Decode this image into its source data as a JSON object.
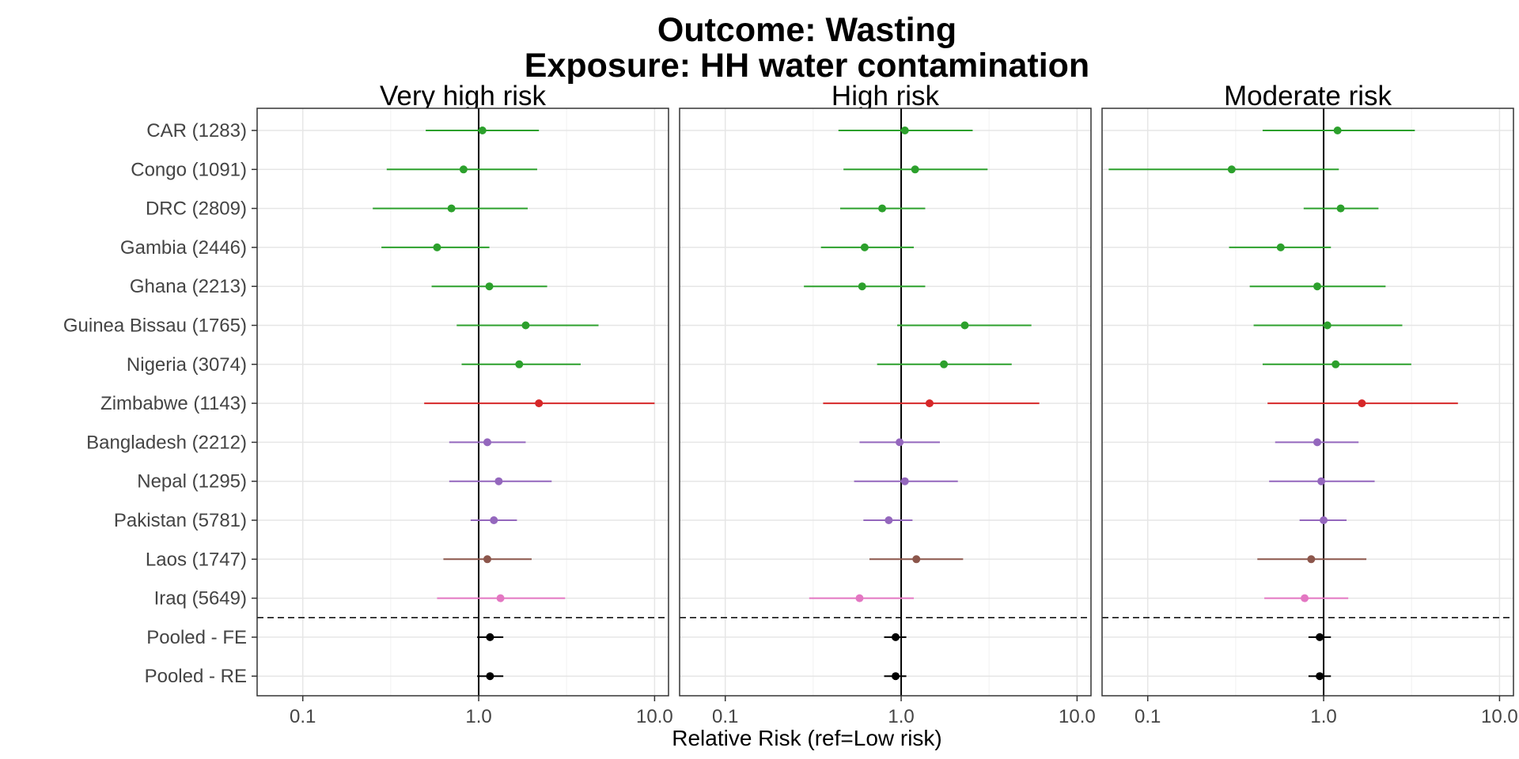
{
  "chart_data": {
    "type": "scatter",
    "title_lines": [
      "Outcome: Wasting",
      "Exposure: HH water contamination"
    ],
    "xlabel": "Relative Risk (ref=Low risk)",
    "ylabel": "",
    "x_scale": "log",
    "xlim": [
      0.055,
      12
    ],
    "x_ticks": [
      0.1,
      1.0,
      10.0
    ],
    "x_tick_labels": [
      "0.1",
      "1.0",
      "10.0"
    ],
    "reference_line_x": 1.0,
    "grid": true,
    "facets": [
      "Very high risk",
      "High risk",
      "Moderate risk"
    ],
    "rows": [
      "CAR (1283)",
      "Congo (1091)",
      "DRC (2809)",
      "Gambia (2446)",
      "Ghana (2213)",
      "Guinea Bissau (1765)",
      "Nigeria (3074)",
      "Zimbabwe (1143)",
      "Bangladesh (2212)",
      "Nepal (1295)",
      "Pakistan (5781)",
      "Laos (1747)",
      "Iraq (5649)",
      "Pooled - FE",
      "Pooled - RE"
    ],
    "row_colors": [
      "#2ca02c",
      "#2ca02c",
      "#2ca02c",
      "#2ca02c",
      "#2ca02c",
      "#2ca02c",
      "#2ca02c",
      "#d62728",
      "#9467bd",
      "#9467bd",
      "#9467bd",
      "#8c564b",
      "#e377c2",
      "#000000",
      "#000000"
    ],
    "separator_after_row": 13,
    "series": [
      {
        "facet": "Very high risk",
        "rr": [
          1.05,
          0.82,
          0.7,
          0.58,
          1.15,
          1.85,
          1.7,
          2.2,
          1.12,
          1.3,
          1.22,
          1.12,
          1.33,
          1.16,
          1.16
        ],
        "lower": [
          0.5,
          0.3,
          0.25,
          0.28,
          0.54,
          0.75,
          0.8,
          0.49,
          0.68,
          0.68,
          0.9,
          0.63,
          0.58,
          0.98,
          0.98
        ],
        "upper": [
          2.2,
          2.15,
          1.9,
          1.15,
          2.45,
          4.8,
          3.8,
          10.0,
          1.85,
          2.6,
          1.65,
          2.0,
          3.1,
          1.38,
          1.38
        ]
      },
      {
        "facet": "High risk",
        "rr": [
          1.05,
          1.2,
          0.78,
          0.62,
          0.6,
          2.3,
          1.75,
          1.45,
          0.98,
          1.05,
          0.85,
          1.22,
          0.58,
          0.93,
          0.93
        ],
        "lower": [
          0.44,
          0.47,
          0.45,
          0.35,
          0.28,
          0.95,
          0.73,
          0.36,
          0.58,
          0.54,
          0.61,
          0.66,
          0.3,
          0.8,
          0.8
        ],
        "upper": [
          2.55,
          3.1,
          1.37,
          1.18,
          1.37,
          5.5,
          4.25,
          6.1,
          1.66,
          2.1,
          1.16,
          2.25,
          1.18,
          1.07,
          1.07
        ]
      },
      {
        "facet": "Moderate risk",
        "rr": [
          1.2,
          0.3,
          1.25,
          0.57,
          0.92,
          1.05,
          1.17,
          1.65,
          0.92,
          0.97,
          1.0,
          0.85,
          0.78,
          0.95,
          0.95
        ],
        "lower": [
          0.45,
          0.06,
          0.77,
          0.29,
          0.38,
          0.4,
          0.45,
          0.48,
          0.53,
          0.49,
          0.73,
          0.42,
          0.46,
          0.82,
          0.82
        ],
        "upper": [
          3.3,
          1.22,
          2.05,
          1.1,
          2.25,
          2.8,
          3.15,
          5.8,
          1.58,
          1.95,
          1.35,
          1.75,
          1.38,
          1.1,
          1.1
        ]
      }
    ]
  }
}
